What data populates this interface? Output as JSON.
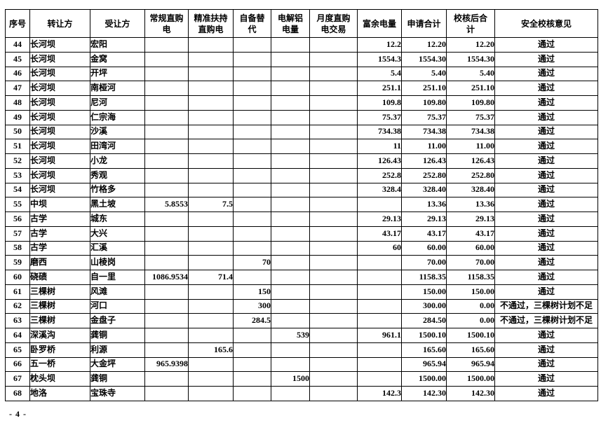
{
  "page": {
    "footer_page_number": "- 4 -"
  },
  "table": {
    "columns": [
      {
        "key": "serial",
        "lines": [
          "序号"
        ]
      },
      {
        "key": "transferor",
        "lines": [
          "转让方"
        ]
      },
      {
        "key": "transferee",
        "lines": [
          "受让方"
        ]
      },
      {
        "key": "regular-direct",
        "lines": [
          "常规直购",
          "电"
        ]
      },
      {
        "key": "precise-support",
        "lines": [
          "精准扶持",
          "直购电"
        ]
      },
      {
        "key": "self-substitute",
        "lines": [
          "自备替",
          "代"
        ]
      },
      {
        "key": "aluminum-power",
        "lines": [
          "电解铝",
          "电量"
        ]
      },
      {
        "key": "monthly-trade",
        "lines": [
          "月度直购",
          "电交易"
        ]
      },
      {
        "key": "surplus-power",
        "lines": [
          "富余电量"
        ]
      },
      {
        "key": "applied-total",
        "lines": [
          "申请合计"
        ]
      },
      {
        "key": "verified-total",
        "lines": [
          "校核后合",
          "计"
        ]
      },
      {
        "key": "safety-opinion",
        "lines": [
          "安全校核意见"
        ]
      }
    ],
    "rows": [
      [
        "44",
        "长河坝",
        "宏阳",
        "",
        "",
        "",
        "",
        "",
        "12.2",
        "12.20",
        "12.20",
        "通过"
      ],
      [
        "45",
        "长河坝",
        "金窝",
        "",
        "",
        "",
        "",
        "",
        "1554.3",
        "1554.30",
        "1554.30",
        "通过"
      ],
      [
        "46",
        "长河坝",
        "开坪",
        "",
        "",
        "",
        "",
        "",
        "5.4",
        "5.40",
        "5.40",
        "通过"
      ],
      [
        "47",
        "长河坝",
        "南桠河",
        "",
        "",
        "",
        "",
        "",
        "251.1",
        "251.10",
        "251.10",
        "通过"
      ],
      [
        "48",
        "长河坝",
        "尼河",
        "",
        "",
        "",
        "",
        "",
        "109.8",
        "109.80",
        "109.80",
        "通过"
      ],
      [
        "49",
        "长河坝",
        "仁宗海",
        "",
        "",
        "",
        "",
        "",
        "75.37",
        "75.37",
        "75.37",
        "通过"
      ],
      [
        "50",
        "长河坝",
        "沙溪",
        "",
        "",
        "",
        "",
        "",
        "734.38",
        "734.38",
        "734.38",
        "通过"
      ],
      [
        "51",
        "长河坝",
        "田湾河",
        "",
        "",
        "",
        "",
        "",
        "11",
        "11.00",
        "11.00",
        "通过"
      ],
      [
        "52",
        "长河坝",
        "小龙",
        "",
        "",
        "",
        "",
        "",
        "126.43",
        "126.43",
        "126.43",
        "通过"
      ],
      [
        "53",
        "长河坝",
        "秀观",
        "",
        "",
        "",
        "",
        "",
        "252.8",
        "252.80",
        "252.80",
        "通过"
      ],
      [
        "54",
        "长河坝",
        "竹格多",
        "",
        "",
        "",
        "",
        "",
        "328.4",
        "328.40",
        "328.40",
        "通过"
      ],
      [
        "55",
        "中坝",
        "黑土坡",
        "5.8553",
        "7.5",
        "",
        "",
        "",
        "",
        "13.36",
        "13.36",
        "通过"
      ],
      [
        "56",
        "古学",
        "城东",
        "",
        "",
        "",
        "",
        "",
        "29.13",
        "29.13",
        "29.13",
        "通过"
      ],
      [
        "57",
        "古学",
        "大兴",
        "",
        "",
        "",
        "",
        "",
        "43.17",
        "43.17",
        "43.17",
        "通过"
      ],
      [
        "58",
        "古学",
        "汇溪",
        "",
        "",
        "",
        "",
        "",
        "60",
        "60.00",
        "60.00",
        "通过"
      ],
      [
        "59",
        "磨西",
        "山棱岗",
        "",
        "",
        "70",
        "",
        "",
        "",
        "70.00",
        "70.00",
        "通过"
      ],
      [
        "60",
        "硗碛",
        "自一里",
        "1086.9534",
        "71.4",
        "",
        "",
        "",
        "",
        "1158.35",
        "1158.35",
        "通过"
      ],
      [
        "61",
        "三棵树",
        "风滩",
        "",
        "",
        "150",
        "",
        "",
        "",
        "150.00",
        "150.00",
        "通过"
      ],
      [
        "62",
        "三棵树",
        "河口",
        "",
        "",
        "300",
        "",
        "",
        "",
        "300.00",
        "0.00",
        "不通过，三棵树计划不足"
      ],
      [
        "63",
        "三棵树",
        "金盘子",
        "",
        "",
        "284.5",
        "",
        "",
        "",
        "284.50",
        "0.00",
        "不通过，三棵树计划不足"
      ],
      [
        "64",
        "深溪沟",
        "龚铜",
        "",
        "",
        "",
        "539",
        "",
        "961.1",
        "1500.10",
        "1500.10",
        "通过"
      ],
      [
        "65",
        "卧罗桥",
        "利源",
        "",
        "165.6",
        "",
        "",
        "",
        "",
        "165.60",
        "165.60",
        "通过"
      ],
      [
        "66",
        "五一桥",
        "大金坪",
        "965.9398",
        "",
        "",
        "",
        "",
        "",
        "965.94",
        "965.94",
        "通过"
      ],
      [
        "67",
        "枕头坝",
        "龚铜",
        "",
        "",
        "",
        "1500",
        "",
        "",
        "1500.00",
        "1500.00",
        "通过"
      ],
      [
        "68",
        "地洛",
        "宝珠寺",
        "",
        "",
        "",
        "",
        "",
        "142.3",
        "142.30",
        "142.30",
        "通过"
      ]
    ]
  }
}
